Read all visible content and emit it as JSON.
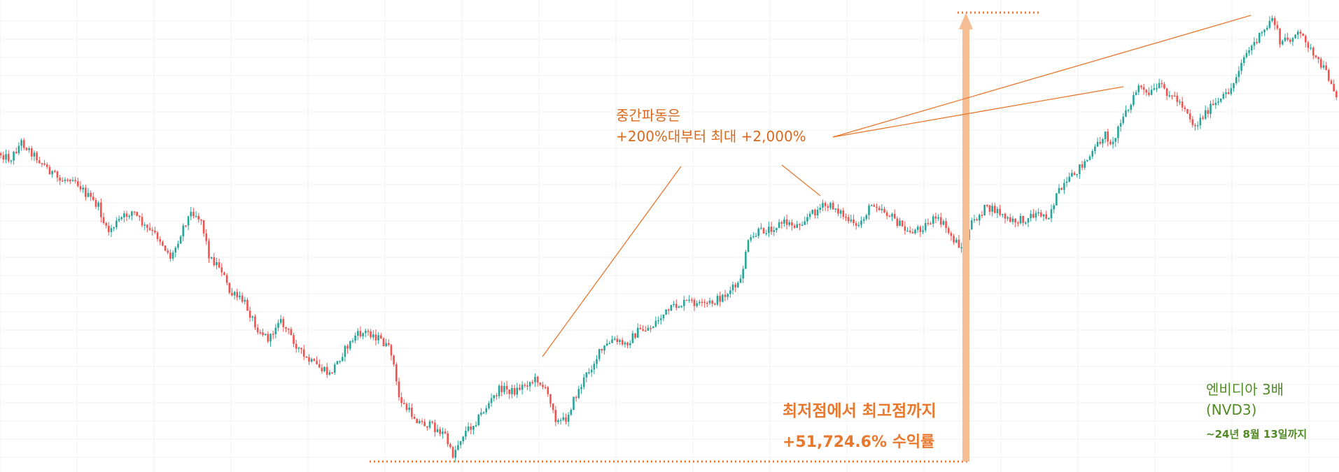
{
  "colors": {
    "up": "#26a69a",
    "down": "#ef5350",
    "annotation": "#e8782d",
    "arrow": "#f5bd94",
    "green_label": "#4f8a22",
    "grid": "#f2f2f2"
  },
  "annotations": {
    "mid_wave_line1": "중간파동은",
    "mid_wave_line2": "+200%대부터 최대  +2,000%",
    "low_to_high": "최저점에서 최고점까지",
    "total_return": "+51,724.6% 수익률",
    "ticker_name": "엔비디아 3배",
    "ticker_code": "(NVD3)",
    "period": "~24년 8월 13일까지"
  },
  "chart_data": {
    "type": "candlestick",
    "title": "",
    "xlabel": "",
    "ylabel": "",
    "grid": true,
    "gain_low_to_high_pct": 51724.6,
    "anchors": [
      [
        0,
        178
      ],
      [
        12,
        185
      ],
      [
        25,
        165
      ],
      [
        40,
        180
      ],
      [
        55,
        195
      ],
      [
        70,
        210
      ],
      [
        85,
        205
      ],
      [
        100,
        225
      ],
      [
        115,
        240
      ],
      [
        125,
        270
      ],
      [
        140,
        255
      ],
      [
        155,
        245
      ],
      [
        170,
        265
      ],
      [
        185,
        275
      ],
      [
        200,
        300
      ],
      [
        215,
        260
      ],
      [
        225,
        245
      ],
      [
        235,
        255
      ],
      [
        245,
        300
      ],
      [
        258,
        310
      ],
      [
        268,
        340
      ],
      [
        285,
        350
      ],
      [
        300,
        380
      ],
      [
        315,
        395
      ],
      [
        325,
        370
      ],
      [
        340,
        390
      ],
      [
        355,
        415
      ],
      [
        370,
        425
      ],
      [
        385,
        435
      ],
      [
        400,
        410
      ],
      [
        415,
        390
      ],
      [
        430,
        385
      ],
      [
        445,
        395
      ],
      [
        458,
        410
      ],
      [
        465,
        460
      ],
      [
        475,
        475
      ],
      [
        490,
        490
      ],
      [
        505,
        495
      ],
      [
        520,
        505
      ],
      [
        528,
        530
      ],
      [
        540,
        505
      ],
      [
        555,
        490
      ],
      [
        570,
        470
      ],
      [
        585,
        450
      ],
      [
        600,
        455
      ],
      [
        615,
        445
      ],
      [
        628,
        440
      ],
      [
        635,
        450
      ],
      [
        645,
        468
      ],
      [
        650,
        490
      ],
      [
        660,
        488
      ],
      [
        670,
        465
      ],
      [
        685,
        435
      ],
      [
        700,
        410
      ],
      [
        715,
        395
      ],
      [
        730,
        400
      ],
      [
        745,
        385
      ],
      [
        760,
        380
      ],
      [
        775,
        365
      ],
      [
        790,
        355
      ],
      [
        805,
        350
      ],
      [
        820,
        355
      ],
      [
        835,
        350
      ],
      [
        850,
        340
      ],
      [
        865,
        328
      ],
      [
        872,
        285
      ],
      [
        885,
        270
      ],
      [
        900,
        265
      ],
      [
        915,
        258
      ],
      [
        930,
        262
      ],
      [
        945,
        250
      ],
      [
        960,
        240
      ],
      [
        975,
        240
      ],
      [
        990,
        255
      ],
      [
        1000,
        265
      ],
      [
        1010,
        250
      ],
      [
        1020,
        235
      ],
      [
        1030,
        242
      ],
      [
        1045,
        255
      ],
      [
        1060,
        270
      ],
      [
        1075,
        265
      ],
      [
        1090,
        255
      ],
      [
        1100,
        258
      ],
      [
        1115,
        280
      ],
      [
        1125,
        288
      ],
      [
        1135,
        260
      ],
      [
        1150,
        242
      ],
      [
        1165,
        245
      ],
      [
        1180,
        258
      ],
      [
        1195,
        255
      ],
      [
        1210,
        248
      ],
      [
        1225,
        250
      ],
      [
        1235,
        225
      ],
      [
        1245,
        215
      ],
      [
        1260,
        195
      ],
      [
        1275,
        180
      ],
      [
        1290,
        155
      ],
      [
        1300,
        168
      ],
      [
        1310,
        135
      ],
      [
        1320,
        125
      ],
      [
        1330,
        98
      ],
      [
        1340,
        112
      ],
      [
        1355,
        100
      ],
      [
        1370,
        112
      ],
      [
        1385,
        125
      ],
      [
        1395,
        148
      ],
      [
        1410,
        128
      ],
      [
        1425,
        118
      ],
      [
        1440,
        100
      ],
      [
        1450,
        70
      ],
      [
        1465,
        50
      ],
      [
        1478,
        35
      ],
      [
        1487,
        18
      ],
      [
        1495,
        50
      ],
      [
        1505,
        45
      ],
      [
        1515,
        40
      ],
      [
        1525,
        45
      ],
      [
        1535,
        68
      ],
      [
        1545,
        78
      ],
      [
        1555,
        95
      ],
      [
        1562,
        115
      ]
    ]
  }
}
